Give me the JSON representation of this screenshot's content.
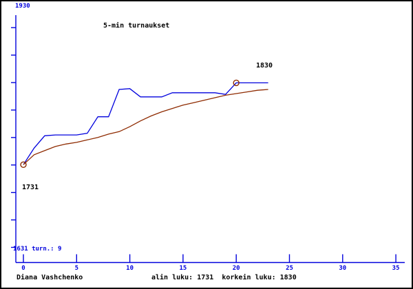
{
  "title": "5-min turnaukset",
  "footer": {
    "player_name": "Diana Vashchenko",
    "summary": "alin luku: 1731  korkein luku: 1830"
  },
  "annotations": {
    "y_top_label": "1930",
    "start_label": "1731",
    "max_label": "1830",
    "bottom_left": "1631 turn.: 9"
  },
  "colors": {
    "axis": "#0000dd",
    "rating_line": "#0000dd",
    "average_line": "#8e2a00",
    "marker": "#8e2a00",
    "text": "#000000",
    "background": "#ffffff",
    "border": "#000000"
  },
  "chart_data": {
    "type": "line",
    "x": [
      0,
      1,
      2,
      3,
      4,
      5,
      6,
      7,
      8,
      9,
      10,
      11,
      12,
      13,
      14,
      15,
      16,
      17,
      18,
      19,
      20,
      21,
      22,
      23
    ],
    "series": [
      {
        "name": "rating",
        "color": "#0000dd",
        "values": [
          1731,
          1751,
          1766,
          1767,
          1767,
          1767,
          1769,
          1789,
          1789,
          1822,
          1823,
          1813,
          1813,
          1813,
          1818,
          1818,
          1818,
          1818,
          1818,
          1816,
          1830,
          1830,
          1830,
          1830
        ]
      },
      {
        "name": "running-average",
        "color": "#8e2a00",
        "values": [
          1731,
          1743,
          1748,
          1753,
          1756,
          1758,
          1761,
          1764,
          1768,
          1771,
          1777,
          1784,
          1790,
          1795,
          1799,
          1803,
          1806,
          1809,
          1812,
          1815,
          1817,
          1819,
          1821,
          1822
        ]
      }
    ],
    "markers": [
      {
        "x": 0,
        "y": 1731,
        "label": "1731"
      },
      {
        "x": 20,
        "y": 1830,
        "label": "1830"
      }
    ],
    "x_ticks": [
      0,
      5,
      10,
      15,
      20,
      25,
      30,
      35
    ],
    "xlim": [
      0,
      35
    ],
    "y_axis": {
      "min": 1631,
      "max": 1930,
      "divisions": 9,
      "top_label": "1930",
      "bottom_label": "1631"
    },
    "stats": {
      "lowest": 1731,
      "highest": 1830,
      "tournaments_note": "turn.: 9"
    },
    "grid": false,
    "legend": "none"
  }
}
